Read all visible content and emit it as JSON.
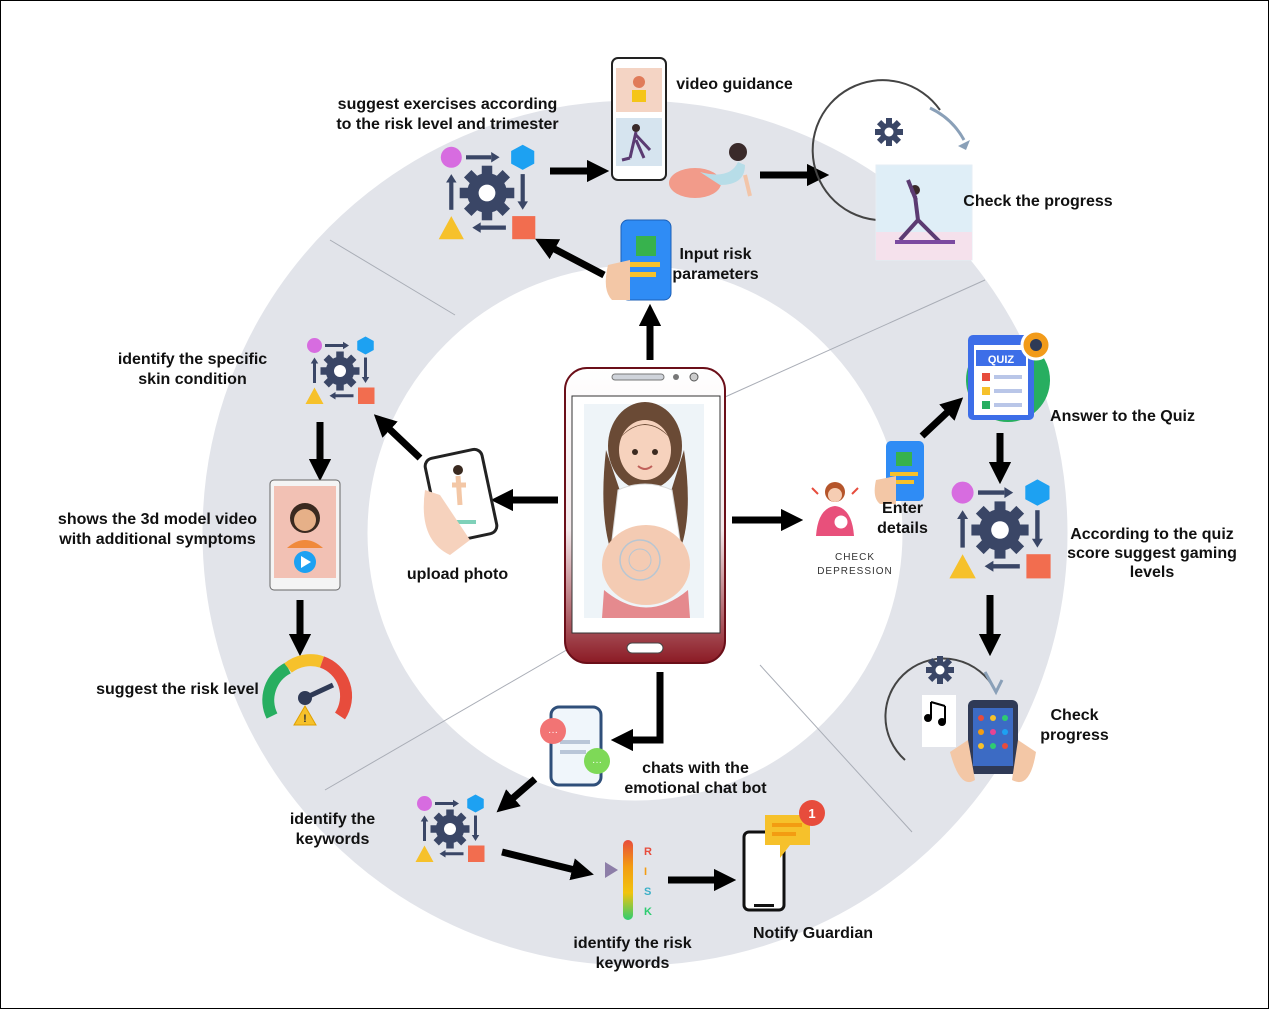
{
  "labels": {
    "suggest_exercises": "suggest exercises according\nto the risk level and trimester",
    "video_guidance": "video guidance",
    "check_the_progress": "Check the progress",
    "input_risk": "Input risk\nparameters",
    "identify_skin": "identify the specific\nskin condition",
    "answer_quiz": "Answer to the Quiz",
    "shows_3d": "shows the 3d model video\nwith additional symptoms",
    "upload_photo": "upload photo",
    "enter_details": "Enter\ndetails",
    "check_depression": "CHECK DEPRESSION",
    "quiz_score": "According to the quiz\nscore suggest gaming\nlevels",
    "suggest_risk": "suggest the risk level",
    "check_progress": "Check\nprogress",
    "chats_bot": "chats with the\nemotional chat bot",
    "identify_keywords": "identify the\nkeywords",
    "identify_risk_keywords": "identify the risk\nkeywords",
    "notify_guardian": "Notify Guardian",
    "quiz_badge": "QUIZ",
    "risk_letters": [
      "R",
      "I",
      "S",
      "K"
    ]
  },
  "colors": {
    "ring": "#e2e4ea",
    "arrow": "#000000",
    "phone_top": "#ffffff",
    "phone_bottom": "#8b1a24",
    "gear": "#3a4666"
  },
  "icons": [
    "gear-flow-icon",
    "phone-video-icon",
    "yoga-ball-icon",
    "progress-cycle-icon",
    "phone-hand-icon",
    "quiz-icon",
    "skin-phone-icon",
    "hand-phone-icon",
    "depression-icon",
    "gauge-icon",
    "tablet-game-icon",
    "music-icon",
    "chat-phone-icon",
    "risk-bar-icon",
    "notification-phone-icon"
  ]
}
